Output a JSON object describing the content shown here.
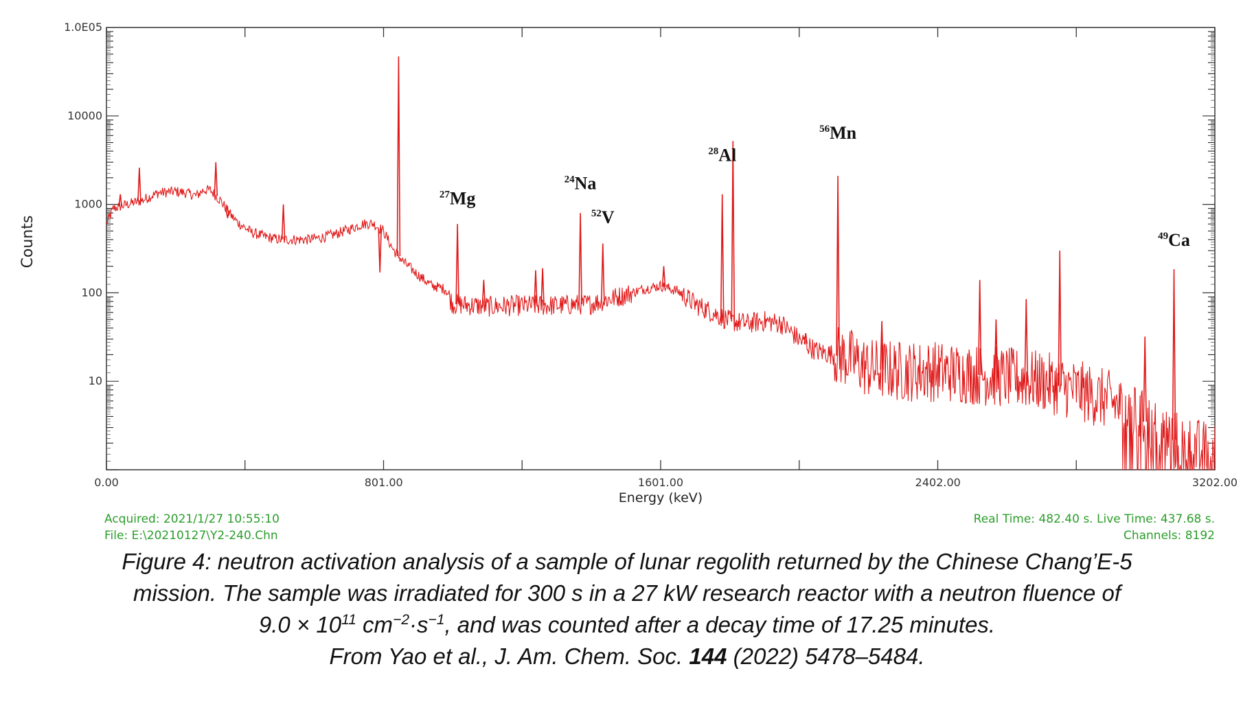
{
  "chart_data": {
    "type": "line",
    "xlabel": "Energy (keV)",
    "ylabel": "Counts",
    "yscale": "log",
    "xlim": [
      0,
      3202
    ],
    "ylim": [
      1,
      100000
    ],
    "x_ticks": [
      0,
      801,
      1601,
      2402,
      3202
    ],
    "x_tick_labels": [
      "0.00",
      "801.00",
      "1601.00",
      "2402.00",
      "3202.00"
    ],
    "y_ticks": [
      10,
      100,
      1000,
      10000,
      100000
    ],
    "y_tick_labels": [
      "10",
      "100",
      "1000",
      "10000",
      "1.0E05"
    ],
    "grid": false,
    "line_color": "#e01818",
    "continuum": [
      [
        0,
        600
      ],
      [
        20,
        900
      ],
      [
        60,
        1000
      ],
      [
        100,
        1100
      ],
      [
        150,
        1350
      ],
      [
        200,
        1400
      ],
      [
        230,
        1350
      ],
      [
        260,
        1250
      ],
      [
        280,
        1450
      ],
      [
        300,
        1450
      ],
      [
        330,
        1100
      ],
      [
        360,
        750
      ],
      [
        380,
        620
      ],
      [
        420,
        480
      ],
      [
        460,
        430
      ],
      [
        500,
        400
      ],
      [
        540,
        400
      ],
      [
        580,
        400
      ],
      [
        620,
        420
      ],
      [
        660,
        460
      ],
      [
        700,
        520
      ],
      [
        740,
        600
      ],
      [
        770,
        610
      ],
      [
        800,
        500
      ],
      [
        830,
        300
      ],
      [
        860,
        220
      ],
      [
        900,
        160
      ],
      [
        940,
        120
      ],
      [
        960,
        115
      ],
      [
        980,
        110
      ],
      [
        1000,
        75
      ],
      [
        1100,
        70
      ],
      [
        1200,
        72
      ],
      [
        1300,
        72
      ],
      [
        1400,
        75
      ],
      [
        1500,
        95
      ],
      [
        1550,
        110
      ],
      [
        1600,
        120
      ],
      [
        1650,
        105
      ],
      [
        1700,
        75
      ],
      [
        1750,
        60
      ],
      [
        1800,
        48
      ],
      [
        1850,
        45
      ],
      [
        1900,
        48
      ],
      [
        1950,
        45
      ],
      [
        2000,
        30
      ],
      [
        2050,
        22
      ],
      [
        2100,
        20
      ],
      [
        2150,
        18
      ],
      [
        2200,
        14
      ],
      [
        2300,
        13
      ],
      [
        2400,
        13
      ],
      [
        2500,
        12
      ],
      [
        2600,
        11
      ],
      [
        2700,
        10
      ],
      [
        2800,
        8
      ],
      [
        2900,
        6
      ],
      [
        2950,
        4.5
      ],
      [
        3000,
        3.5
      ],
      [
        3100,
        2
      ],
      [
        3202,
        1.5
      ]
    ],
    "peaks": [
      {
        "energy": 40,
        "counts": 1300
      },
      {
        "energy": 95,
        "counts": 2600
      },
      {
        "energy": 316,
        "counts": 3000
      },
      {
        "energy": 350,
        "counts": 700
      },
      {
        "energy": 511,
        "counts": 1000
      },
      {
        "energy": 790,
        "counts": 170
      },
      {
        "energy": 844,
        "counts": 47000
      },
      {
        "energy": 950,
        "counts": 120
      },
      {
        "energy": 1014,
        "counts": 600
      },
      {
        "energy": 1090,
        "counts": 140
      },
      {
        "energy": 1240,
        "counts": 180
      },
      {
        "energy": 1260,
        "counts": 190
      },
      {
        "energy": 1369,
        "counts": 800
      },
      {
        "energy": 1434,
        "counts": 360
      },
      {
        "energy": 1610,
        "counts": 200
      },
      {
        "energy": 1779,
        "counts": 1300
      },
      {
        "energy": 1810,
        "counts": 5200
      },
      {
        "energy": 2020,
        "counts": 35
      },
      {
        "energy": 2113,
        "counts": 2100
      },
      {
        "energy": 2240,
        "counts": 48
      },
      {
        "energy": 2523,
        "counts": 140
      },
      {
        "energy": 2570,
        "counts": 50
      },
      {
        "energy": 2657,
        "counts": 85
      },
      {
        "energy": 2754,
        "counts": 300
      },
      {
        "energy": 3000,
        "counts": 32
      },
      {
        "energy": 3084,
        "counts": 185
      }
    ],
    "annotations": [
      {
        "sup": "27",
        "element": "Mg",
        "x": 1014,
        "y": 1000
      },
      {
        "sup": "24",
        "element": "Na",
        "x": 1369,
        "y": 1480
      },
      {
        "sup": "52",
        "element": "V",
        "x": 1434,
        "y": 610
      },
      {
        "sup": "28",
        "element": "Al",
        "x": 1779,
        "y": 3100
      },
      {
        "sup": "56",
        "element": "Mn",
        "x": 2113,
        "y": 5500
      },
      {
        "sup": "49",
        "element": "Ca",
        "x": 3084,
        "y": 340
      }
    ]
  },
  "info": {
    "acquired": "Acquired:  2021/1/27 10:55:10",
    "file": "File:  E:\\20210127\\Y2-240.Chn",
    "times": "Real Time:  482.40 s.  Live Time:  437.68 s.",
    "channels": "Channels:  8192"
  },
  "caption": {
    "line1": "Figure 4: neutron activation analysis of a sample of lunar regolith returned by the Chinese Chang’E-5",
    "line2": "mission.  The sample was irradiated for 300 s in a 27 kW research reactor with a neutron fluence of",
    "line3_a": "9.0 × 10",
    "line3_sup1": "11",
    "line3_b": " cm",
    "line3_sup2": "−2",
    "line3_c": "·s",
    "line3_sup3": "−1",
    "line3_d": ", and was counted after a decay time of 17.25 minutes.",
    "line4_a": "From Yao et al., J. Am. Chem. Soc. ",
    "line4_bold": "144",
    "line4_b": " (2022) 5478–5484."
  }
}
